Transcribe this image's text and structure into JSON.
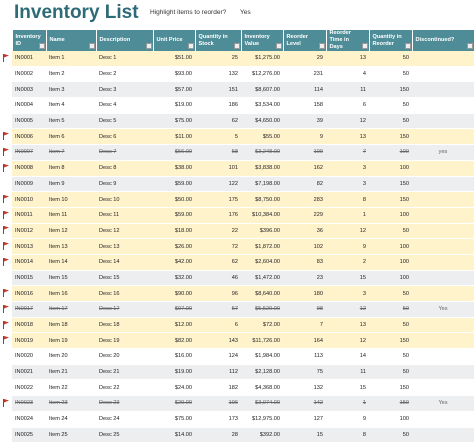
{
  "header": {
    "title": "Inventory List",
    "highlight_label": "Highlight items to reorder?",
    "highlight_value": "Yes"
  },
  "table": {
    "columns": [
      "Inventory ID",
      "Name",
      "Description",
      "Unit Price",
      "Quantity in Stock",
      "Inventory Value",
      "Reorder Level",
      "Reorder Time in Days",
      "Quantity in Reorder",
      "Discontinued?"
    ],
    "flagged": [
      true,
      false,
      false,
      false,
      false,
      true,
      true,
      true,
      false,
      true,
      true,
      true,
      true,
      true,
      false,
      true,
      true,
      true,
      true,
      false,
      false,
      false,
      true,
      false,
      false
    ],
    "rows": [
      [
        "IN0001",
        "Item 1",
        "Desc 1",
        "$51.00",
        25,
        "$1,275.00",
        29,
        13,
        50,
        null
      ],
      [
        "IN0002",
        "Item 2",
        "Desc 2",
        "$93.00",
        132,
        "$12,276.00",
        231,
        4,
        50,
        null
      ],
      [
        "IN0003",
        "Item 3",
        "Desc 3",
        "$57.00",
        151,
        "$8,607.00",
        114,
        11,
        150,
        null
      ],
      [
        "IN0004",
        "Item 4",
        "Desc 4",
        "$19.00",
        186,
        "$3,534.00",
        158,
        6,
        50,
        null
      ],
      [
        "IN0005",
        "Item 5",
        "Desc 5",
        "$75.00",
        62,
        "$4,650.00",
        39,
        12,
        50,
        null
      ],
      [
        "IN0006",
        "Item 6",
        "Desc 6",
        "$11.00",
        5,
        "$55.00",
        9,
        13,
        150,
        null
      ],
      [
        "IN0007",
        "Item 7",
        "Desc 7",
        "$56.00",
        58,
        "$3,248.00",
        109,
        7,
        100,
        "yes"
      ],
      [
        "IN0008",
        "Item 8",
        "Desc 8",
        "$38.00",
        101,
        "$3,838.00",
        162,
        3,
        100,
        null
      ],
      [
        "IN0009",
        "Item 9",
        "Desc 9",
        "$59.00",
        122,
        "$7,198.00",
        82,
        3,
        150,
        null
      ],
      [
        "IN0010",
        "Item 10",
        "Desc 10",
        "$50.00",
        175,
        "$8,750.00",
        283,
        8,
        150,
        null
      ],
      [
        "IN0011",
        "Item 11",
        "Desc 11",
        "$59.00",
        176,
        "$10,384.00",
        229,
        1,
        100,
        null
      ],
      [
        "IN0012",
        "Item 12",
        "Desc 12",
        "$18.00",
        22,
        "$396.00",
        36,
        12,
        50,
        null
      ],
      [
        "IN0013",
        "Item 13",
        "Desc 13",
        "$26.00",
        72,
        "$1,872.00",
        102,
        9,
        100,
        null
      ],
      [
        "IN0014",
        "Item 14",
        "Desc 14",
        "$42.00",
        62,
        "$2,604.00",
        83,
        2,
        100,
        null
      ],
      [
        "IN0015",
        "Item 15",
        "Desc 15",
        "$32.00",
        46,
        "$1,472.00",
        23,
        15,
        100,
        null
      ],
      [
        "IN0016",
        "Item 16",
        "Desc 16",
        "$90.00",
        96,
        "$8,640.00",
        180,
        3,
        50,
        null
      ],
      [
        "IN0017",
        "Item 17",
        "Desc 17",
        "$97.00",
        57,
        "$5,529.00",
        98,
        12,
        50,
        "Yes"
      ],
      [
        "IN0018",
        "Item 18",
        "Desc 18",
        "$12.00",
        6,
        "$72.00",
        7,
        13,
        50,
        null
      ],
      [
        "IN0019",
        "Item 19",
        "Desc 19",
        "$82.00",
        143,
        "$11,726.00",
        164,
        12,
        150,
        null
      ],
      [
        "IN0020",
        "Item 20",
        "Desc 20",
        "$16.00",
        124,
        "$1,984.00",
        113,
        14,
        50,
        null
      ],
      [
        "IN0021",
        "Item 21",
        "Desc 21",
        "$19.00",
        112,
        "$2,128.00",
        75,
        11,
        50,
        null
      ],
      [
        "IN0022",
        "Item 22",
        "Desc 22",
        "$24.00",
        182,
        "$4,368.00",
        132,
        15,
        150,
        null
      ],
      [
        "IN0023",
        "Item 23",
        "Desc 23",
        "$29.00",
        106,
        "$3,074.00",
        142,
        1,
        150,
        "Yes"
      ],
      [
        "IN0024",
        "Item 24",
        "Desc 24",
        "$75.00",
        173,
        "$12,975.00",
        127,
        9,
        100,
        null
      ],
      [
        "IN0025",
        "Item 25",
        "Desc 25",
        "$14.00",
        28,
        "$392.00",
        15,
        8,
        50,
        null
      ]
    ]
  }
}
